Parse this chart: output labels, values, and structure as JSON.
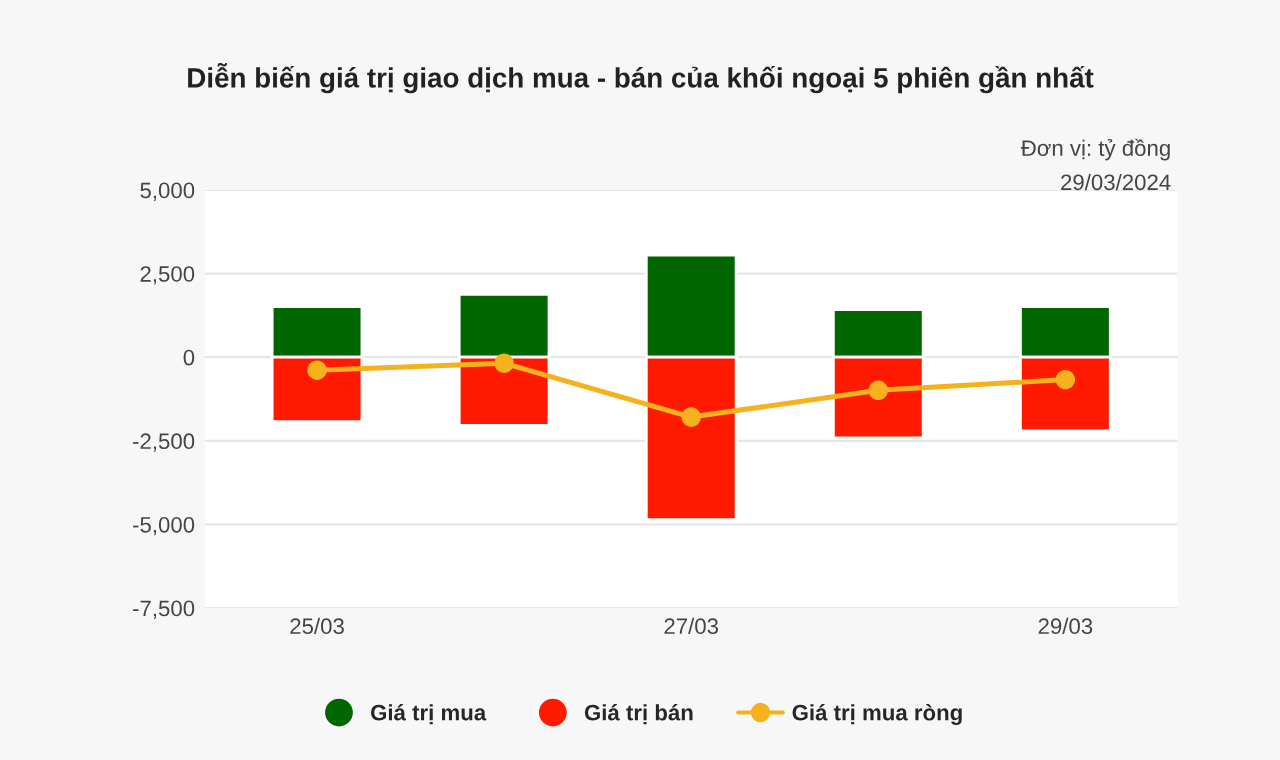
{
  "chart_data": {
    "type": "bar",
    "title": "Diễn biến giá trị giao dịch mua - bán của khối ngoại 5 phiên gần nhất",
    "annotations": [
      "Đơn vị: tỷ đồng",
      "29/03/2024"
    ],
    "categories": [
      "25/03",
      null,
      "27/03",
      null,
      "29/03"
    ],
    "stacked": true,
    "series": [
      {
        "name": "Giá trị mua",
        "color": "#006600",
        "values": [
          1510,
          1880,
          3050,
          1420,
          1510
        ]
      },
      {
        "name": "Giá trị bán",
        "color": "#ff1a00",
        "values": [
          -1930,
          -2040,
          -4860,
          -2410,
          -2200
        ]
      },
      {
        "name": "Giá trị mua ròng",
        "type": "line",
        "color": "#f5b21c",
        "marker": "circle",
        "values": [
          -390,
          -180,
          -1790,
          -990,
          -670
        ]
      }
    ],
    "ylim": [
      -7500,
      5000
    ],
    "yticks": [
      {
        "value": -7500,
        "label": "-7,500"
      },
      {
        "value": -5000,
        "label": "-5,000"
      },
      {
        "value": -2500,
        "label": "-2,500"
      },
      0,
      {
        "value": 2500,
        "label": "2,500"
      },
      {
        "value": 5000,
        "label": "5,000"
      }
    ],
    "grid": "y",
    "legend": "bottom"
  }
}
